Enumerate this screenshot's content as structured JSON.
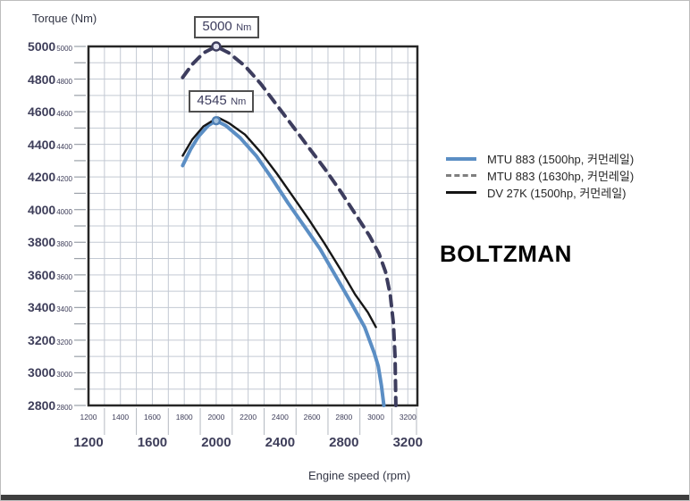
{
  "chart": {
    "y_axis_title": "Torque (Nm)",
    "x_axis_title": "Engine speed (rpm)"
  },
  "watermark": "BOLTZMAN",
  "chart_data": {
    "type": "line",
    "title": "",
    "xlabel": "Engine speed (rpm)",
    "ylabel": "Torque (Nm)",
    "xlim": [
      1200,
      3260
    ],
    "ylim": [
      2800,
      5000
    ],
    "grid": true,
    "grid_step_x": 100,
    "grid_step_y": 100,
    "legend_position": "right",
    "x_minor_ticks": [
      1200,
      1400,
      1600,
      1800,
      2000,
      2200,
      2400,
      2600,
      2800,
      3000,
      3200
    ],
    "x_major_ticks": [
      1200,
      1600,
      2000,
      2400,
      2800,
      3200
    ],
    "y_major_ticks": [
      5000,
      4800,
      4600,
      4400,
      4200,
      4000,
      3800,
      3600,
      3400,
      3200,
      3000,
      2800
    ],
    "series": [
      {
        "name": "MTU 883 (1500hp, 커먼레일)",
        "style": "solid",
        "color": "#5b8ec4",
        "width": 4,
        "peak": {
          "x": 2000,
          "y": 4545
        },
        "marker": {
          "fill": "#a3c1dd",
          "stroke": "#4d7fb5",
          "r": 4
        },
        "points": [
          [
            1790,
            4270
          ],
          [
            1840,
            4370
          ],
          [
            1890,
            4450
          ],
          [
            1950,
            4515
          ],
          [
            2000,
            4545
          ],
          [
            2060,
            4515
          ],
          [
            2150,
            4440
          ],
          [
            2250,
            4330
          ],
          [
            2350,
            4190
          ],
          [
            2450,
            4040
          ],
          [
            2550,
            3900
          ],
          [
            2650,
            3760
          ],
          [
            2750,
            3590
          ],
          [
            2850,
            3420
          ],
          [
            2930,
            3280
          ],
          [
            2990,
            3120
          ],
          [
            3015,
            3040
          ],
          [
            3035,
            2920
          ],
          [
            3050,
            2800
          ]
        ]
      },
      {
        "name": "DV 27K (1500hp, 커먼레일)",
        "style": "solid",
        "color": "#161616",
        "width": 2.4,
        "points": [
          [
            1790,
            4330
          ],
          [
            1850,
            4430
          ],
          [
            1920,
            4510
          ],
          [
            2010,
            4565
          ],
          [
            2080,
            4530
          ],
          [
            2180,
            4460
          ],
          [
            2280,
            4350
          ],
          [
            2380,
            4220
          ],
          [
            2480,
            4080
          ],
          [
            2580,
            3940
          ],
          [
            2680,
            3790
          ],
          [
            2780,
            3630
          ],
          [
            2870,
            3480
          ],
          [
            2950,
            3370
          ],
          [
            3000,
            3280
          ]
        ]
      },
      {
        "name": "MTU 883 (1630hp, 커먼레일)",
        "style": "dashed",
        "color": "#3d3d5e",
        "width": 4,
        "dash": "11 8",
        "peak": {
          "x": 2000,
          "y": 5000
        },
        "marker": {
          "fill": "#e2e2f0",
          "stroke": "#3d3d5e",
          "r": 4.5
        },
        "points": [
          [
            1790,
            4810
          ],
          [
            1850,
            4890
          ],
          [
            1920,
            4960
          ],
          [
            2000,
            5000
          ],
          [
            2080,
            4960
          ],
          [
            2180,
            4880
          ],
          [
            2280,
            4770
          ],
          [
            2380,
            4640
          ],
          [
            2480,
            4510
          ],
          [
            2580,
            4380
          ],
          [
            2680,
            4250
          ],
          [
            2780,
            4110
          ],
          [
            2880,
            3960
          ],
          [
            2960,
            3840
          ],
          [
            3020,
            3730
          ],
          [
            3060,
            3620
          ],
          [
            3090,
            3480
          ],
          [
            3110,
            3300
          ],
          [
            3120,
            3100
          ],
          [
            3125,
            2800
          ]
        ]
      }
    ],
    "annotations": [
      {
        "value": "5000",
        "unit": "Nm",
        "anchor_x": 2000,
        "anchor_y": 5000
      },
      {
        "value": "4545",
        "unit": "Nm",
        "anchor_x": 2000,
        "anchor_y": 4545
      }
    ]
  },
  "legend": {
    "order_note": "blue, dashed, black"
  }
}
